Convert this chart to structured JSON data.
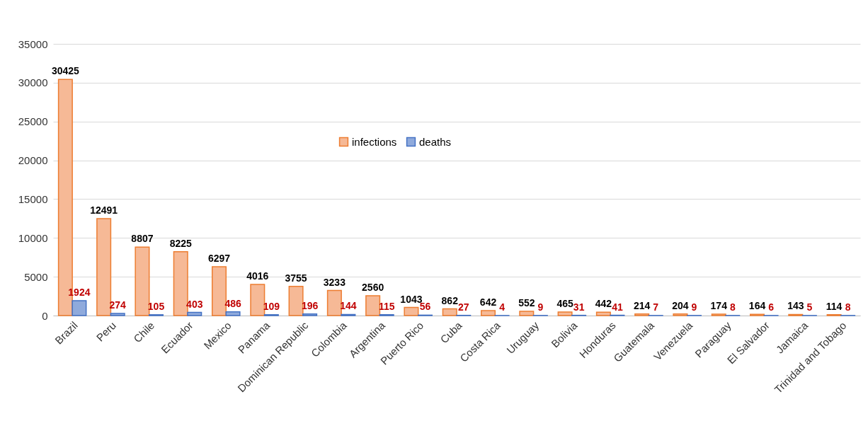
{
  "chart_data": {
    "type": "bar",
    "categories": [
      "Brazil",
      "Peru",
      "Chile",
      "Ecuador",
      "Mexico",
      "Panama",
      "Dominican Republic",
      "Colombia",
      "Argentina",
      "Puerto Rico",
      "Cuba",
      "Costa Rica",
      "Uruguay",
      "Bolivia",
      "Honduras",
      "Guatemala",
      "Venezuela",
      "Paraguay",
      "El Salvador",
      "Jamaica",
      "Trinidad and Tobago"
    ],
    "series": [
      {
        "name": "infections",
        "color": "#f6b996",
        "values": [
          30425,
          12491,
          8807,
          8225,
          6297,
          4016,
          3755,
          3233,
          2560,
          1043,
          862,
          642,
          552,
          465,
          442,
          214,
          204,
          174,
          164,
          143,
          114
        ]
      },
      {
        "name": "deaths",
        "color": "#8faadc",
        "values": [
          1924,
          274,
          105,
          403,
          486,
          109,
          196,
          144,
          115,
          56,
          27,
          4,
          9,
          31,
          41,
          7,
          9,
          8,
          6,
          5,
          8
        ]
      }
    ],
    "ylim": [
      0,
      35000
    ],
    "yticks": [
      0,
      5000,
      10000,
      15000,
      20000,
      25000,
      30000,
      35000
    ],
    "grid": "y",
    "legend": "top",
    "data_labels": true
  }
}
